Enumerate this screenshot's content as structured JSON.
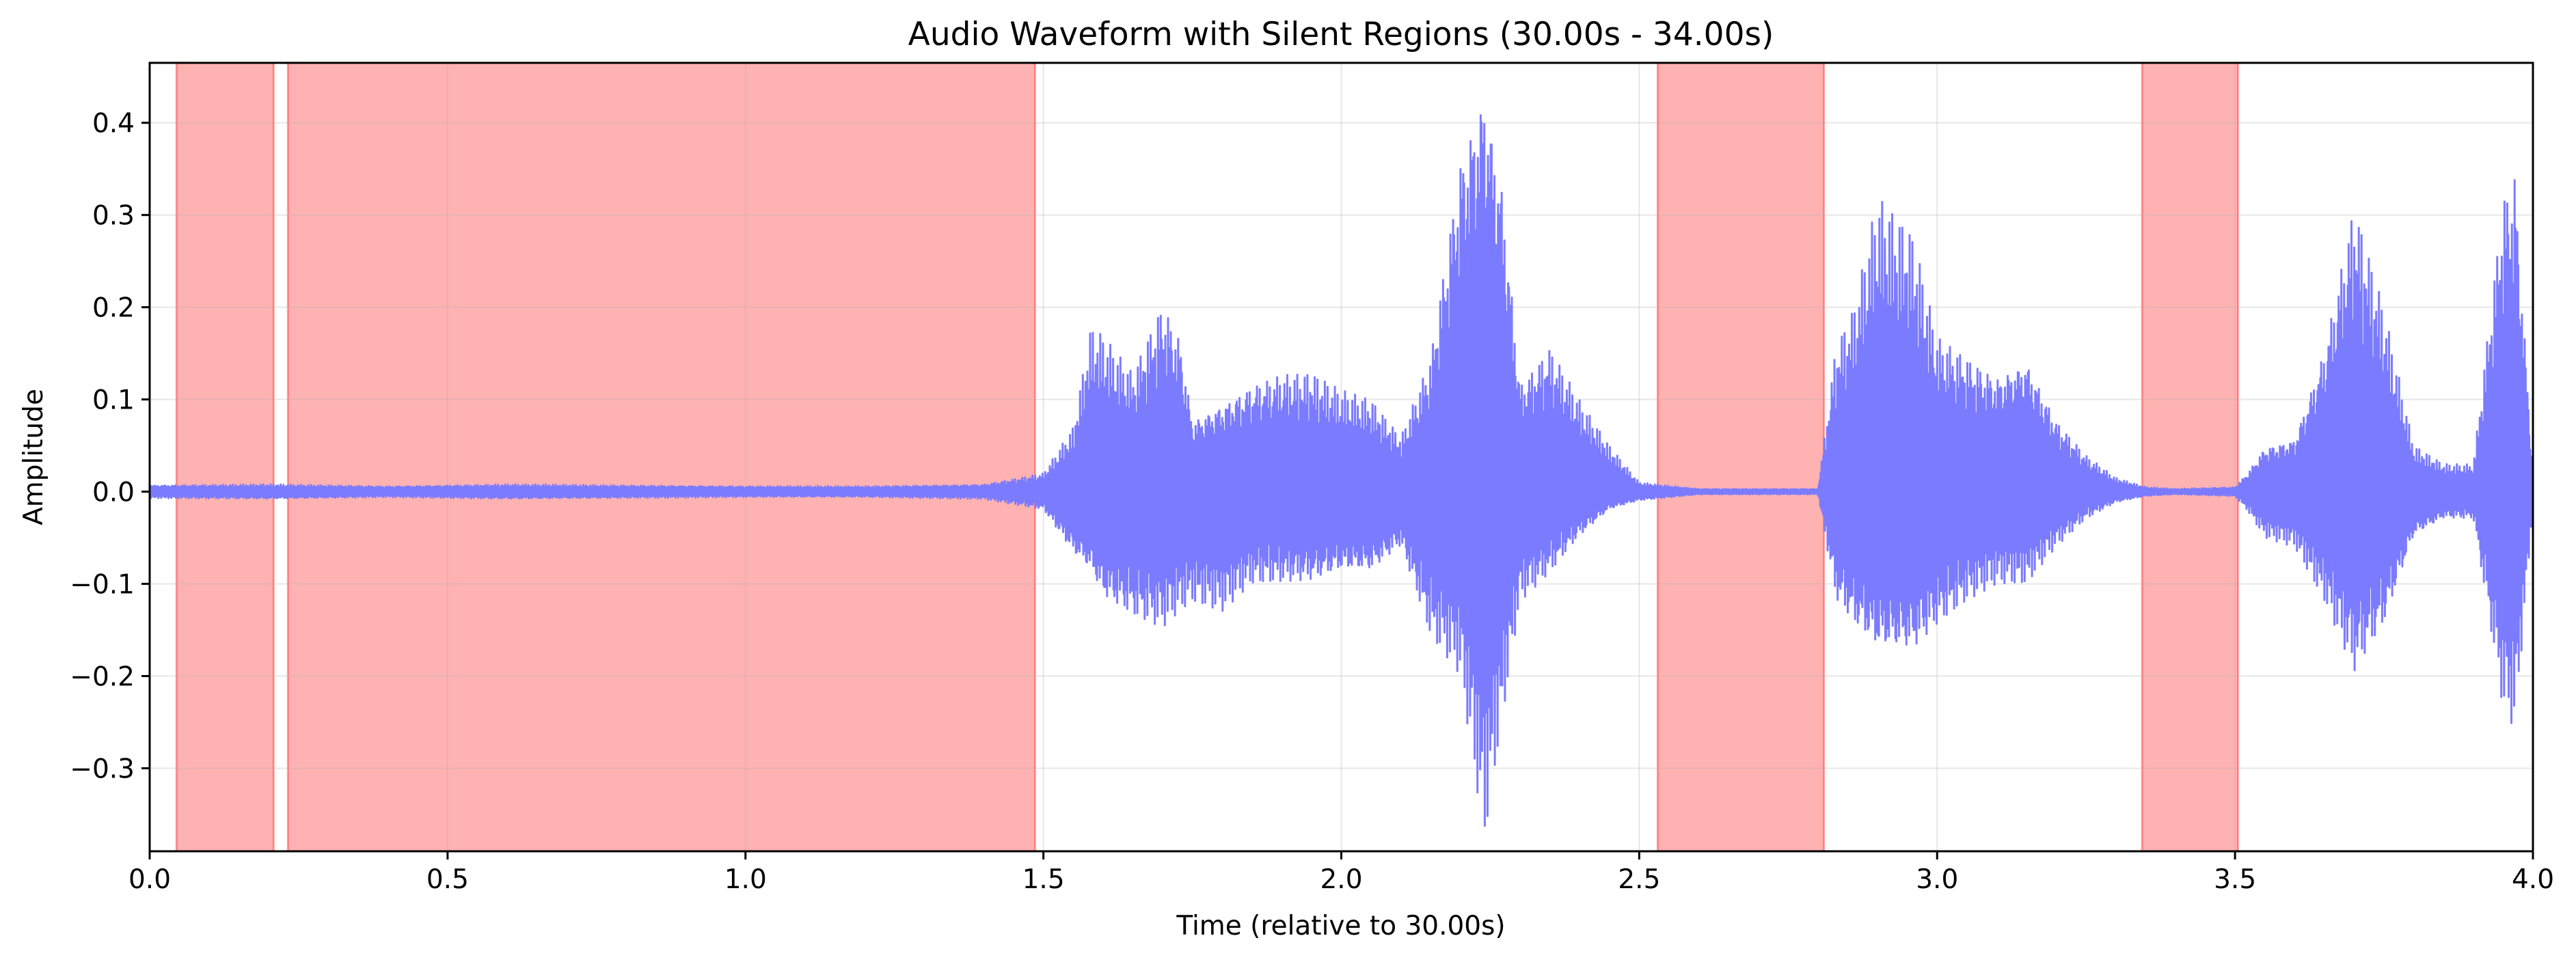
{
  "chart_data": {
    "type": "line",
    "title": "Audio Waveform with Silent Regions (30.00s - 34.00s)",
    "xlabel": "Time (relative to 30.00s)",
    "ylabel": "Amplitude",
    "xlim": [
      0.0,
      4.0
    ],
    "ylim": [
      -0.39,
      0.465
    ],
    "x_ticks": [
      {
        "value": 0.0,
        "label": "0.0"
      },
      {
        "value": 0.5,
        "label": "0.5"
      },
      {
        "value": 1.0,
        "label": "1.0"
      },
      {
        "value": 1.5,
        "label": "1.5"
      },
      {
        "value": 2.0,
        "label": "2.0"
      },
      {
        "value": 2.5,
        "label": "2.5"
      },
      {
        "value": 3.0,
        "label": "3.0"
      },
      {
        "value": 3.5,
        "label": "3.5"
      },
      {
        "value": 4.0,
        "label": "4.0"
      }
    ],
    "y_ticks": [
      {
        "value": -0.3,
        "label": "−0.3"
      },
      {
        "value": -0.2,
        "label": "−0.2"
      },
      {
        "value": -0.1,
        "label": "−0.1"
      },
      {
        "value": 0.0,
        "label": "0.0"
      },
      {
        "value": 0.1,
        "label": "0.1"
      },
      {
        "value": 0.2,
        "label": "0.2"
      },
      {
        "value": 0.3,
        "label": "0.3"
      },
      {
        "value": 0.4,
        "label": "0.4"
      }
    ],
    "grid": true,
    "silent_regions": [
      {
        "start": 0.045,
        "end": 0.208
      },
      {
        "start": 0.232,
        "end": 1.486
      },
      {
        "start": 2.531,
        "end": 2.81
      },
      {
        "start": 3.344,
        "end": 3.505
      }
    ],
    "silent_region_color": "#ff0000",
    "silent_region_opacity": 0.3,
    "waveform_color": "#7b7bff",
    "waveform_envelope": {
      "times": [
        0.0,
        0.2,
        0.4,
        0.6,
        0.8,
        1.0,
        1.2,
        1.4,
        1.5,
        1.52,
        1.55,
        1.58,
        1.6,
        1.65,
        1.7,
        1.73,
        1.75,
        1.8,
        1.85,
        1.9,
        1.95,
        2.0,
        2.05,
        2.1,
        2.15,
        2.2,
        2.24,
        2.27,
        2.3,
        2.35,
        2.4,
        2.45,
        2.5,
        2.6,
        2.7,
        2.8,
        2.83,
        2.86,
        2.9,
        2.93,
        2.96,
        3.0,
        3.05,
        3.1,
        3.15,
        3.2,
        3.25,
        3.3,
        3.35,
        3.4,
        3.5,
        3.52,
        3.55,
        3.6,
        3.65,
        3.7,
        3.75,
        3.8,
        3.85,
        3.9,
        3.95,
        3.97,
        4.0
      ],
      "upper": [
        0.007,
        0.008,
        0.006,
        0.008,
        0.007,
        0.006,
        0.006,
        0.008,
        0.02,
        0.04,
        0.07,
        0.18,
        0.17,
        0.13,
        0.21,
        0.17,
        0.08,
        0.1,
        0.12,
        0.13,
        0.13,
        0.11,
        0.1,
        0.06,
        0.15,
        0.38,
        0.465,
        0.35,
        0.12,
        0.16,
        0.1,
        0.05,
        0.01,
        0.003,
        0.003,
        0.003,
        0.16,
        0.2,
        0.32,
        0.3,
        0.28,
        0.17,
        0.15,
        0.13,
        0.15,
        0.08,
        0.04,
        0.015,
        0.005,
        0.003,
        0.005,
        0.02,
        0.05,
        0.06,
        0.16,
        0.32,
        0.2,
        0.05,
        0.03,
        0.03,
        0.33,
        0.36,
        0.02
      ],
      "lower": [
        -0.007,
        -0.008,
        -0.006,
        -0.008,
        -0.007,
        -0.006,
        -0.006,
        -0.008,
        -0.02,
        -0.04,
        -0.07,
        -0.09,
        -0.12,
        -0.14,
        -0.15,
        -0.13,
        -0.12,
        -0.13,
        -0.1,
        -0.1,
        -0.1,
        -0.09,
        -0.09,
        -0.06,
        -0.16,
        -0.2,
        -0.38,
        -0.25,
        -0.12,
        -0.09,
        -0.05,
        -0.02,
        -0.01,
        -0.003,
        -0.003,
        -0.003,
        -0.12,
        -0.15,
        -0.18,
        -0.18,
        -0.18,
        -0.15,
        -0.12,
        -0.1,
        -0.1,
        -0.06,
        -0.03,
        -0.012,
        -0.005,
        -0.003,
        -0.005,
        -0.02,
        -0.05,
        -0.06,
        -0.12,
        -0.2,
        -0.15,
        -0.05,
        -0.03,
        -0.03,
        -0.24,
        -0.26,
        -0.02
      ]
    }
  }
}
